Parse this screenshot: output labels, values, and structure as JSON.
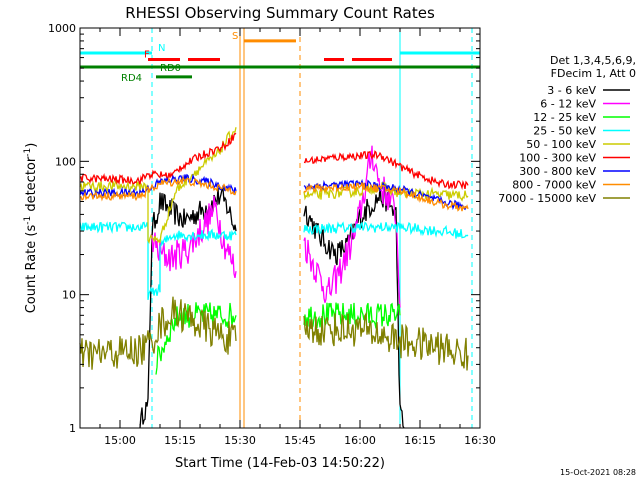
{
  "chart_data": {
    "type": "line",
    "title": "RHESSI Observing Summary Count Rates",
    "xlabel": "Start Time (14-Feb-03 14:50:22)",
    "ylabel_main": "Count Rate (s",
    "ylabel_sup1": "-1",
    "ylabel_mid": " detector",
    "ylabel_sup2": "-1",
    "ylabel_end": ")",
    "y_scale": "log",
    "ylim": [
      1,
      1000
    ],
    "xlim": [
      "14:50",
      "16:30"
    ],
    "x_ticks": [
      "15:00",
      "15:15",
      "15:30",
      "15:45",
      "16:00",
      "16:15",
      "16:30"
    ],
    "y_ticks": [
      "1",
      "10",
      "100",
      "1000"
    ],
    "timestamp": "15-Oct-2021 08:28",
    "legend_header": [
      "Det 1,3,4,5,6,9,",
      "FDecim 1, Att 0"
    ],
    "flag_labels": {
      "N": "N",
      "F": "F",
      "S": "S",
      "RD0": "RD0",
      "RD4": "RD4"
    },
    "flags": [
      {
        "label": "N",
        "color": "#00ffff",
        "y": 650,
        "spans": [
          [
            "14:50",
            "15:08"
          ],
          [
            "16:10",
            "16:30"
          ]
        ]
      },
      {
        "label": "F",
        "color": "#ff0000",
        "y": 580,
        "spans": [
          [
            "15:07",
            "15:15"
          ],
          [
            "15:17",
            "15:25"
          ],
          [
            "15:51",
            "15:56"
          ],
          [
            "15:58",
            "16:08"
          ]
        ]
      },
      {
        "label": "S",
        "color": "#ff8c00",
        "y": 800,
        "spans": [
          [
            "15:31",
            "15:44"
          ]
        ]
      },
      {
        "label": "RD0",
        "color": "#008000",
        "y": 510,
        "spans": [
          [
            "14:50",
            "16:30"
          ]
        ]
      },
      {
        "label": "RD4",
        "color": "#008000",
        "y": 430,
        "spans": [
          [
            "15:09",
            "15:18"
          ]
        ]
      }
    ],
    "vlines": [
      {
        "time": "15:08",
        "color": "#00ffff",
        "style": "dashed"
      },
      {
        "time": "15:30",
        "color": "#ff8c00",
        "style": "solid"
      },
      {
        "time": "15:31",
        "color": "#ff8c00",
        "style": "solid"
      },
      {
        "time": "15:45",
        "color": "#ff8c00",
        "style": "dashed"
      },
      {
        "time": "16:10",
        "color": "#00ffff",
        "style": "solid"
      },
      {
        "time": "16:28",
        "color": "#00ffff",
        "style": "dashed"
      }
    ],
    "series": [
      {
        "name": "3 - 6 keV",
        "color": "#000000",
        "noise": 0.09,
        "segments": [
          [
            [
              "15:05",
              1
            ],
            [
              "15:06",
              1.4
            ],
            [
              "15:07",
              1.4
            ],
            [
              "15:08",
              30
            ],
            [
              "15:10",
              50
            ],
            [
              "15:13",
              42
            ],
            [
              "15:16",
              36
            ],
            [
              "15:20",
              42
            ],
            [
              "15:25",
              55
            ],
            [
              "15:27",
              45
            ],
            [
              "15:29",
              30
            ]
          ],
          [
            [
              "15:46",
              45
            ],
            [
              "15:50",
              27
            ],
            [
              "15:54",
              20
            ],
            [
              "15:57",
              24
            ],
            [
              "16:00",
              38
            ],
            [
              "16:03",
              48
            ],
            [
              "16:05",
              55
            ],
            [
              "16:07",
              50
            ],
            [
              "16:09",
              40
            ],
            [
              "16:10",
              1.3
            ],
            [
              "16:11",
              1
            ]
          ]
        ]
      },
      {
        "name": "6 - 12 keV",
        "color": "#ff00ff",
        "noise": 0.12,
        "segments": [
          [
            [
              "15:08",
              26
            ],
            [
              "15:10",
              20
            ],
            [
              "15:13",
              19
            ],
            [
              "15:17",
              22
            ],
            [
              "15:20",
              30
            ],
            [
              "15:24",
              45
            ],
            [
              "15:26",
              25
            ],
            [
              "15:29",
              15
            ]
          ],
          [
            [
              "15:46",
              25
            ],
            [
              "15:48",
              18
            ],
            [
              "15:52",
              10
            ],
            [
              "15:55",
              15
            ],
            [
              "15:59",
              30
            ],
            [
              "16:02",
              80
            ],
            [
              "16:03",
              120
            ],
            [
              "16:05",
              65
            ],
            [
              "16:07",
              55
            ],
            [
              "16:09",
              40
            ],
            [
              "16:10",
              8
            ]
          ]
        ]
      },
      {
        "name": "12 - 25 keV",
        "color": "#00ff00",
        "noise": 0.1,
        "segments": [
          [
            [
              "15:09",
              3
            ],
            [
              "15:12",
              5
            ],
            [
              "15:13",
              6
            ],
            [
              "15:15",
              7
            ],
            [
              "15:29",
              7
            ]
          ],
          [
            [
              "15:46",
              7
            ],
            [
              "15:58",
              7
            ],
            [
              "16:05",
              7
            ],
            [
              "16:10",
              7
            ]
          ]
        ]
      },
      {
        "name": "25 - 50 keV",
        "color": "#00ffff",
        "noise": 0.04,
        "segments": [
          [
            [
              "14:50",
              32
            ],
            [
              "15:07",
              32
            ],
            [
              "15:07",
              10
            ],
            [
              "15:10",
              11
            ],
            [
              "15:10",
              23
            ],
            [
              "15:13",
              28
            ],
            [
              "15:29",
              28
            ]
          ],
          [
            [
              "15:46",
              31
            ],
            [
              "16:00",
              32
            ],
            [
              "16:10",
              32
            ],
            [
              "16:20",
              30
            ],
            [
              "16:27",
              28
            ]
          ]
        ]
      },
      {
        "name": "50 - 100 keV",
        "color": "#cccc00",
        "noise": 0.04,
        "segments": [
          [
            [
              "14:50",
              65
            ],
            [
              "15:07",
              65
            ],
            [
              "15:07",
              26
            ],
            [
              "15:10",
              26
            ],
            [
              "15:12",
              40
            ],
            [
              "15:14",
              60
            ],
            [
              "15:18",
              80
            ],
            [
              "15:24",
              110
            ],
            [
              "15:29",
              180
            ]
          ],
          [
            [
              "15:46",
              55
            ],
            [
              "16:00",
              60
            ],
            [
              "16:05",
              65
            ],
            [
              "16:10",
              58
            ],
            [
              "16:27",
              55
            ]
          ]
        ]
      },
      {
        "name": "100 - 300 keV",
        "color": "#ff0000",
        "noise": 0.03,
        "segments": [
          [
            [
              "14:50",
              75
            ],
            [
              "15:05",
              72
            ],
            [
              "15:07",
              80
            ],
            [
              "15:13",
              78
            ],
            [
              "15:15",
              90
            ],
            [
              "15:20",
              110
            ],
            [
              "15:26",
              130
            ],
            [
              "15:29",
              160
            ]
          ],
          [
            [
              "15:46",
              100
            ],
            [
              "15:55",
              108
            ],
            [
              "16:05",
              112
            ],
            [
              "16:12",
              85
            ],
            [
              "16:20",
              68
            ],
            [
              "16:27",
              66
            ]
          ]
        ]
      },
      {
        "name": "300 - 800 keV",
        "color": "#0000ff",
        "noise": 0.03,
        "segments": [
          [
            [
              "14:50",
              58
            ],
            [
              "15:05",
              58
            ],
            [
              "15:10",
              70
            ],
            [
              "15:16",
              75
            ],
            [
              "15:22",
              70
            ],
            [
              "15:29",
              60
            ]
          ],
          [
            [
              "15:46",
              65
            ],
            [
              "16:00",
              68
            ],
            [
              "16:10",
              62
            ],
            [
              "16:20",
              50
            ],
            [
              "16:27",
              45
            ]
          ]
        ]
      },
      {
        "name": "800 - 7000 keV",
        "color": "#ff8c00",
        "noise": 0.03,
        "segments": [
          [
            [
              "14:50",
              55
            ],
            [
              "15:05",
              55
            ],
            [
              "15:10",
              68
            ],
            [
              "15:16",
              72
            ],
            [
              "15:22",
              66
            ],
            [
              "15:29",
              60
            ]
          ],
          [
            [
              "15:46",
              62
            ],
            [
              "16:00",
              65
            ],
            [
              "16:10",
              60
            ],
            [
              "16:20",
              48
            ],
            [
              "16:27",
              44
            ]
          ]
        ]
      },
      {
        "name": "7000 - 15000 keV",
        "color": "#808000",
        "noise": 0.13,
        "segments": [
          [
            [
              "14:50",
              3.5
            ],
            [
              "15:05",
              3.8
            ],
            [
              "15:08",
              4.5
            ],
            [
              "15:10",
              6
            ],
            [
              "15:14",
              7.5
            ],
            [
              "15:20",
              6
            ],
            [
              "15:25",
              5
            ],
            [
              "15:29",
              4.5
            ]
          ],
          [
            [
              "15:46",
              5.5
            ],
            [
              "16:00",
              5.5
            ],
            [
              "16:05",
              5
            ],
            [
              "16:10",
              4.5
            ],
            [
              "16:20",
              4
            ],
            [
              "16:27",
              3.5
            ]
          ]
        ]
      }
    ]
  }
}
